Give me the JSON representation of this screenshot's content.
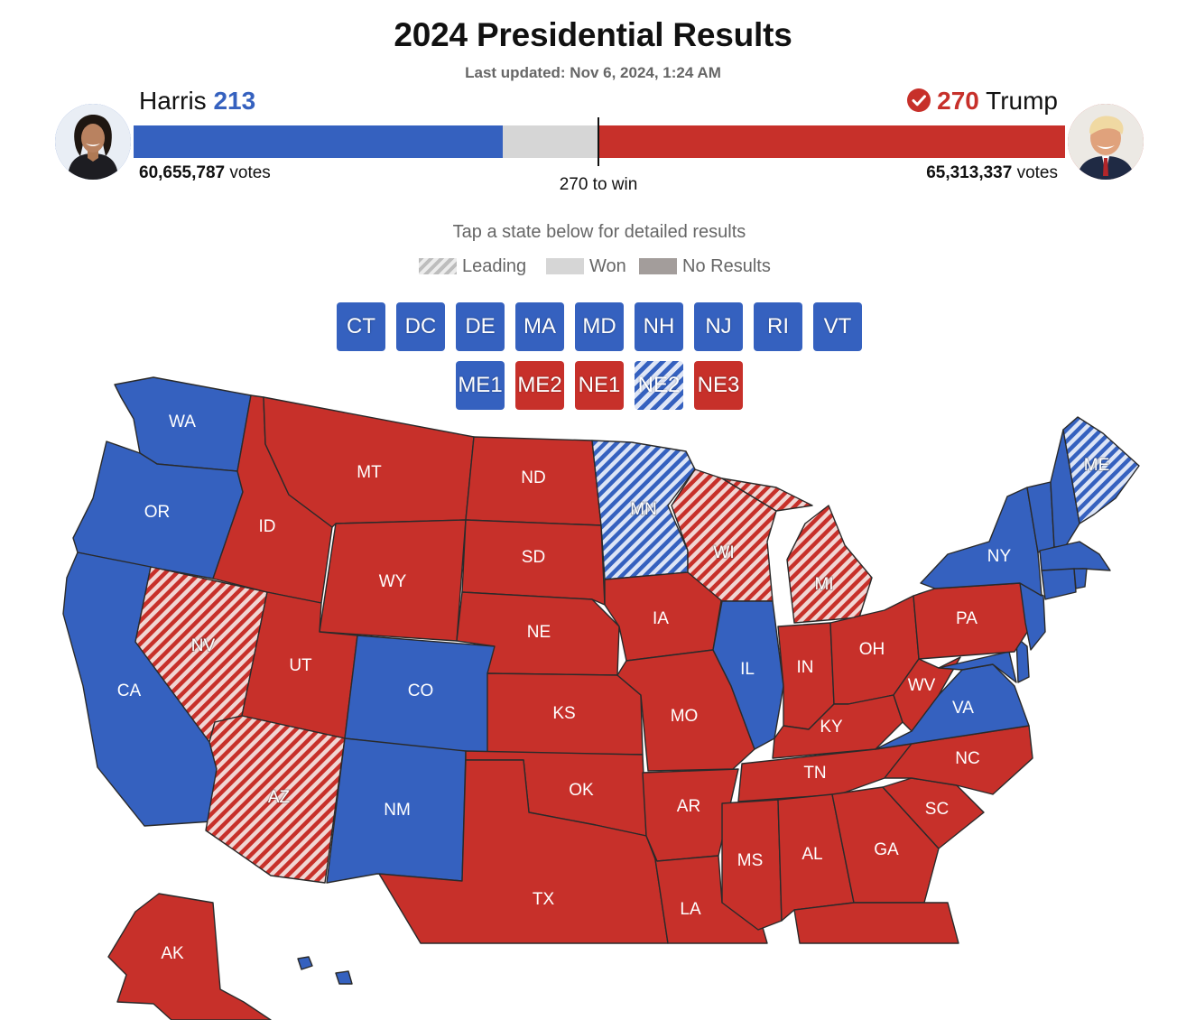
{
  "title": "2024 Presidential Results",
  "updated": "Last updated: Nov 6, 2024, 1:24 AM",
  "harris": {
    "name": "Harris",
    "electoral": "213",
    "votes_num": "60,655,787",
    "votes_word": "votes"
  },
  "trump": {
    "name": "Trump",
    "electoral": "270",
    "votes_num": "65,313,337",
    "votes_word": "votes",
    "won": true
  },
  "to_win": "270 to win",
  "bar": {
    "harris_fraction": 0.393,
    "uncalled_fraction": 0.102,
    "trump_fraction": 0.505
  },
  "tap_text": "Tap a state below for detailed results",
  "legend": [
    {
      "label": "Leading",
      "style": "hatched"
    },
    {
      "label": "Won",
      "style": "solid"
    },
    {
      "label": "No Results",
      "style": "dark-gray"
    }
  ],
  "colors": {
    "dem": "#3561bf",
    "rep": "#c7302a",
    "uncalled": "#d6d6d6",
    "no_results": "#a39d9b"
  },
  "small_states": [
    {
      "code": "CT",
      "status": "dem-won"
    },
    {
      "code": "DC",
      "status": "dem-won"
    },
    {
      "code": "DE",
      "status": "dem-won"
    },
    {
      "code": "MA",
      "status": "dem-won"
    },
    {
      "code": "MD",
      "status": "dem-won"
    },
    {
      "code": "NH",
      "status": "dem-won"
    },
    {
      "code": "NJ",
      "status": "dem-won"
    },
    {
      "code": "RI",
      "status": "dem-won"
    },
    {
      "code": "VT",
      "status": "dem-won"
    }
  ],
  "districts": [
    {
      "code": "ME1",
      "status": "dem-won"
    },
    {
      "code": "ME2",
      "status": "rep-won"
    },
    {
      "code": "NE1",
      "status": "rep-won"
    },
    {
      "code": "NE2",
      "status": "dem-leading"
    },
    {
      "code": "NE3",
      "status": "rep-won"
    }
  ],
  "map_states": {
    "WA": "dem-won",
    "OR": "dem-won",
    "CA": "dem-won",
    "NV": "rep-leading",
    "ID": "rep-won",
    "MT": "rep-won",
    "WY": "rep-won",
    "UT": "rep-won",
    "AZ": "rep-leading",
    "CO": "dem-won",
    "NM": "dem-won",
    "ND": "rep-won",
    "SD": "rep-won",
    "NE": "rep-won",
    "KS": "rep-won",
    "OK": "rep-won",
    "TX": "rep-won",
    "MN": "dem-leading",
    "IA": "rep-won",
    "MO": "rep-won",
    "AR": "rep-won",
    "LA": "rep-won",
    "WI": "rep-leading",
    "IL": "dem-won",
    "MI": "rep-leading",
    "IN": "rep-won",
    "OH": "rep-won",
    "KY": "rep-won",
    "TN": "rep-won",
    "MS": "rep-won",
    "AL": "rep-won",
    "GA": "rep-won",
    "SC": "rep-won",
    "NC": "rep-won",
    "VA": "dem-won",
    "WV": "rep-won",
    "PA": "rep-won",
    "NY": "dem-won",
    "ME": "dem-leading",
    "AK": "rep-won",
    "FL": "rep-won",
    "VT": "dem-won",
    "NH": "dem-won",
    "MA": "dem-won",
    "CT": "dem-won",
    "RI": "dem-won",
    "NJ": "dem-won",
    "DE": "dem-won",
    "MD": "dem-won",
    "HI": "dem-won"
  }
}
